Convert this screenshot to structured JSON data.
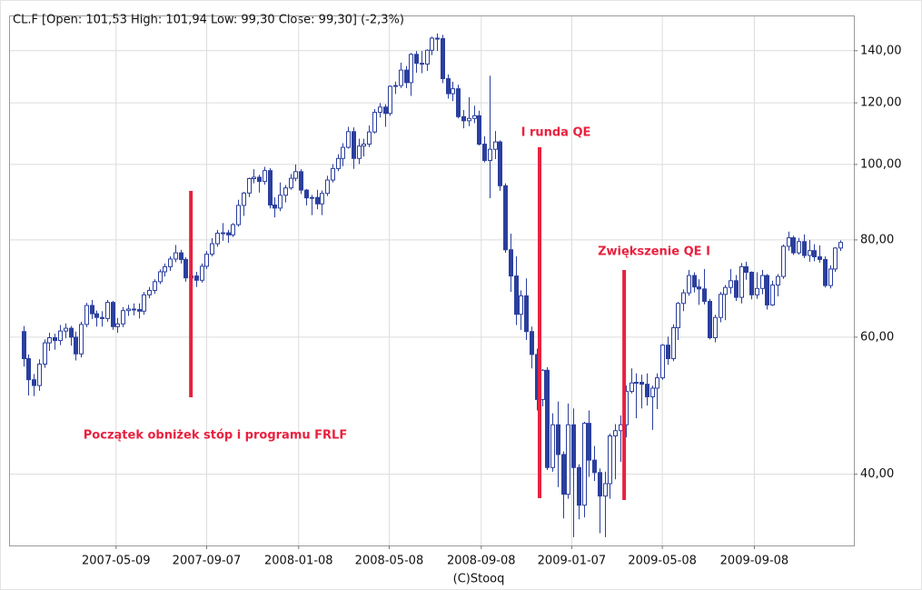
{
  "chart_data": {
    "type": "candlestick",
    "title": "CL.F [Open: 101,53  High: 101,94  Low: 99,30  Close: 99,30] (-2,3%)",
    "footer": "(C)Stooq",
    "log_scale": true,
    "grid": true,
    "up_color": "#ffffff",
    "down_color": "#2b3f9e",
    "edge_color": "#2b3f9e",
    "annotation_color": "#e8213f",
    "xlim": [
      "2006-12-17",
      "2010-01-19"
    ],
    "xticks": [
      "2007-05-09",
      "2007-09-07",
      "2008-01-08",
      "2008-05-08",
      "2008-09-08",
      "2009-01-07",
      "2009-05-08",
      "2009-09-08"
    ],
    "ylim": [
      32.4,
      155.4
    ],
    "yticks": [
      {
        "value": 40,
        "label": "40,00"
      },
      {
        "value": 60,
        "label": "60,00"
      },
      {
        "value": 80,
        "label": "80,00"
      },
      {
        "value": 100,
        "label": "100,00"
      },
      {
        "value": 120,
        "label": "120,00"
      },
      {
        "value": 140,
        "label": "140,00"
      }
    ],
    "annotations": [
      {
        "text": "Początek obniżek stóp i programu FRLF",
        "date": "2007-08-17"
      },
      {
        "text": "I runda QE",
        "date": "2008-11-25"
      },
      {
        "text": "Zwiększenie QE I",
        "date": "2009-03-18"
      }
    ],
    "x": [
      "2007-01-05",
      "2007-01-12",
      "2007-01-19",
      "2007-01-26",
      "2007-02-02",
      "2007-02-09",
      "2007-02-16",
      "2007-02-23",
      "2007-03-02",
      "2007-03-09",
      "2007-03-16",
      "2007-03-23",
      "2007-03-30",
      "2007-04-06",
      "2007-04-13",
      "2007-04-20",
      "2007-04-27",
      "2007-05-04",
      "2007-05-11",
      "2007-05-18",
      "2007-05-25",
      "2007-06-01",
      "2007-06-08",
      "2007-06-15",
      "2007-06-22",
      "2007-06-29",
      "2007-07-06",
      "2007-07-13",
      "2007-07-20",
      "2007-07-27",
      "2007-08-03",
      "2007-08-10",
      "2007-08-17",
      "2007-08-24",
      "2007-08-31",
      "2007-09-07",
      "2007-09-14",
      "2007-09-21",
      "2007-09-28",
      "2007-10-05",
      "2007-10-12",
      "2007-10-19",
      "2007-10-26",
      "2007-11-02",
      "2007-11-09",
      "2007-11-16",
      "2007-11-23",
      "2007-11-30",
      "2007-12-07",
      "2007-12-14",
      "2007-12-21",
      "2007-12-28",
      "2008-01-04",
      "2008-01-11",
      "2008-01-18",
      "2008-01-25",
      "2008-02-01",
      "2008-02-08",
      "2008-02-15",
      "2008-02-22",
      "2008-02-29",
      "2008-03-07",
      "2008-03-14",
      "2008-03-21",
      "2008-03-28",
      "2008-04-04",
      "2008-04-11",
      "2008-04-18",
      "2008-04-25",
      "2008-05-02",
      "2008-05-09",
      "2008-05-16",
      "2008-05-23",
      "2008-05-30",
      "2008-06-06",
      "2008-06-13",
      "2008-06-20",
      "2008-06-27",
      "2008-07-04",
      "2008-07-11",
      "2008-07-18",
      "2008-07-25",
      "2008-08-01",
      "2008-08-08",
      "2008-08-15",
      "2008-08-22",
      "2008-08-29",
      "2008-09-05",
      "2008-09-12",
      "2008-09-19",
      "2008-09-26",
      "2008-10-03",
      "2008-10-10",
      "2008-10-17",
      "2008-10-24",
      "2008-10-31",
      "2008-11-07",
      "2008-11-14",
      "2008-11-21",
      "2008-11-28",
      "2008-12-05",
      "2008-12-12",
      "2008-12-19",
      "2008-12-26",
      "2009-01-02",
      "2009-01-09",
      "2009-01-16",
      "2009-01-23",
      "2009-01-30",
      "2009-02-06",
      "2009-02-13",
      "2009-02-20",
      "2009-02-27",
      "2009-03-06",
      "2009-03-13",
      "2009-03-20",
      "2009-03-27",
      "2009-04-03",
      "2009-04-10",
      "2009-04-17",
      "2009-04-24",
      "2009-05-01",
      "2009-05-08",
      "2009-05-15",
      "2009-05-22",
      "2009-05-29",
      "2009-06-05",
      "2009-06-12",
      "2009-06-19",
      "2009-06-26",
      "2009-07-03",
      "2009-07-10",
      "2009-07-17",
      "2009-07-24",
      "2009-07-31",
      "2009-08-07",
      "2009-08-14",
      "2009-08-21",
      "2009-08-28",
      "2009-09-04",
      "2009-09-11",
      "2009-09-18",
      "2009-09-25",
      "2009-10-02",
      "2009-10-09",
      "2009-10-16",
      "2009-10-23",
      "2009-10-30",
      "2009-11-06",
      "2009-11-13",
      "2009-11-20",
      "2009-11-27",
      "2009-12-04",
      "2009-12-11",
      "2009-12-18",
      "2009-12-25",
      "2010-01-01"
    ],
    "open": [
      61.0,
      56.3,
      52.9,
      52.0,
      55.4,
      59.0,
      59.9,
      59.4,
      61.1,
      61.6,
      60.0,
      57.1,
      62.3,
      65.9,
      64.3,
      63.6,
      63.4,
      66.5,
      61.9,
      62.4,
      64.9,
      65.2,
      65.1,
      64.8,
      68.0,
      68.9,
      70.7,
      72.8,
      73.9,
      75.6,
      77.0,
      75.5,
      71.5,
      71.9,
      71.0,
      74.0,
      76.7,
      79.1,
      81.6,
      81.7,
      81.2,
      83.7,
      88.6,
      91.9,
      95.9,
      96.3,
      95.1,
      98.2,
      88.7,
      87.9,
      91.3,
      93.3,
      96.0,
      97.9,
      92.7,
      90.6,
      90.7,
      89.0,
      91.8,
      95.5,
      98.8,
      101.8,
      105.2,
      110.2,
      101.8,
      105.6,
      106.2,
      110.1,
      116.7,
      118.5,
      116.3,
      126.0,
      126.3,
      132.2,
      127.4,
      138.5,
      134.9,
      134.6,
      140.2,
      145.3,
      145.1,
      128.9,
      123.3,
      125.1,
      115.2,
      113.8,
      114.6,
      115.5,
      106.2,
      101.2,
      104.6,
      106.9,
      93.9,
      77.7,
      71.9,
      64.2,
      67.8,
      61.0,
      57.0,
      49.9,
      54.4,
      40.8,
      46.3,
      42.4,
      37.7,
      46.3,
      40.8,
      36.5,
      46.5,
      41.7,
      40.2,
      37.5,
      38.9,
      44.8,
      45.5,
      46.3,
      51.1,
      52.4,
      52.5,
      52.2,
      50.3,
      51.6,
      53.2,
      58.6,
      56.3,
      61.7,
      66.3,
      68.4,
      72.0,
      69.6,
      69.2,
      66.7,
      59.9,
      63.6,
      68.1,
      69.5,
      70.9,
      67.5,
      73.9,
      72.7,
      68.0,
      69.3,
      72.0,
      66.0,
      70.0,
      71.8,
      78.5,
      80.5,
      77.0,
      79.6,
      76.4,
      77.5,
      76.1,
      75.5,
      69.9,
      73.4,
      78.1
    ],
    "high": [
      62.0,
      57.0,
      53.8,
      56.2,
      59.6,
      60.8,
      60.6,
      62.2,
      62.5,
      62.0,
      61.0,
      62.8,
      66.4,
      67.0,
      64.9,
      64.8,
      67.0,
      66.8,
      63.5,
      65.6,
      66.0,
      66.3,
      66.3,
      68.6,
      69.6,
      71.2,
      73.3,
      74.6,
      76.2,
      78.8,
      77.7,
      76.0,
      72.6,
      72.8,
      74.6,
      77.4,
      80.4,
      82.4,
      84.1,
      82.4,
      84.1,
      90.1,
      92.2,
      96.2,
      98.6,
      97.0,
      99.3,
      98.9,
      90.7,
      94.8,
      94.1,
      97.2,
      100.0,
      98.6,
      93.0,
      91.4,
      92.8,
      92.6,
      96.7,
      100.1,
      103.1,
      106.5,
      111.8,
      111.6,
      107.9,
      107.9,
      112.2,
      117.8,
      119.9,
      119.5,
      126.4,
      127.8,
      135.1,
      133.8,
      139.1,
      139.9,
      139.9,
      140.6,
      146.0,
      147.3,
      146.7,
      130.5,
      127.7,
      126.6,
      117.5,
      122.0,
      119.0,
      117.3,
      108.7,
      130.0,
      110.4,
      107.4,
      94.6,
      81.5,
      76.2,
      68.9,
      71.4,
      61.9,
      58.0,
      54.6,
      54.9,
      47.9,
      49.6,
      42.8,
      49.3,
      48.6,
      41.2,
      46.7,
      48.3,
      43.5,
      40.7,
      40.3,
      45.1,
      46.4,
      47.6,
      52.0,
      54.7,
      53.9,
      53.7,
      53.9,
      52.0,
      53.9,
      58.8,
      60.1,
      62.3,
      66.6,
      69.1,
      73.2,
      72.7,
      71.2,
      73.4,
      67.2,
      64.1,
      68.6,
      70.0,
      73.4,
      72.1,
      74.7,
      75.0,
      72.9,
      72.7,
      73.2,
      72.3,
      70.9,
      72.3,
      78.9,
      82.0,
      81.0,
      80.5,
      81.3,
      80.0,
      79.0,
      78.7,
      76.2,
      74.2,
      78.3,
      79.9
    ],
    "low": [
      55.0,
      50.5,
      50.4,
      51.2,
      54.8,
      57.6,
      57.8,
      58.6,
      59.8,
      58.5,
      56.0,
      56.5,
      61.8,
      63.3,
      61.9,
      61.9,
      62.8,
      61.3,
      60.8,
      61.8,
      63.9,
      64.0,
      63.4,
      64.1,
      67.3,
      68.2,
      70.2,
      71.8,
      73.0,
      74.9,
      74.6,
      70.7,
      69.0,
      69.6,
      70.5,
      73.4,
      76.2,
      78.4,
      79.8,
      79.3,
      80.7,
      83.2,
      85.9,
      90.8,
      94.6,
      92.0,
      94.2,
      87.8,
      85.5,
      87.1,
      89.4,
      92.8,
      95.2,
      91.6,
      88.6,
      86.1,
      87.6,
      86.1,
      91.1,
      94.8,
      98.0,
      99.5,
      104.8,
      98.7,
      100.1,
      102.4,
      105.3,
      109.6,
      114.9,
      111.8,
      115.5,
      123.2,
      125.4,
      125.3,
      122.5,
      131.2,
      131.0,
      131.9,
      138.2,
      139.9,
      127.2,
      121.5,
      120.6,
      114.6,
      111.3,
      112.0,
      113.0,
      105.8,
      100.6,
      90.5,
      101.6,
      92.5,
      77.0,
      68.6,
      62.2,
      61.3,
      59.5,
      54.7,
      48.3,
      48.9,
      40.5,
      40.3,
      38.5,
      35.1,
      37.2,
      33.2,
      35.0,
      35.2,
      39.7,
      39.2,
      33.6,
      33.2,
      37.2,
      39.4,
      41.5,
      44.6,
      50.8,
      47.2,
      48.6,
      49.0,
      45.6,
      48.5,
      52.9,
      55.3,
      55.9,
      59.5,
      64.8,
      67.8,
      68.5,
      66.0,
      66.1,
      59.6,
      59.1,
      62.7,
      63.1,
      68.2,
      66.8,
      66.3,
      71.1,
      67.1,
      67.2,
      68.1,
      65.1,
      65.8,
      67.7,
      71.3,
      77.5,
      76.5,
      76.6,
      75.8,
      75.0,
      75.1,
      74.8,
      69.5,
      69.3,
      72.8,
      77.4
    ],
    "close": [
      56.3,
      52.9,
      52.0,
      55.4,
      59.0,
      59.9,
      59.4,
      61.1,
      61.6,
      60.0,
      57.1,
      62.3,
      65.9,
      64.3,
      63.6,
      63.4,
      66.5,
      61.9,
      62.4,
      64.9,
      65.2,
      65.1,
      64.8,
      68.0,
      68.9,
      70.7,
      72.8,
      73.9,
      75.6,
      77.0,
      75.5,
      71.5,
      71.9,
      71.0,
      74.0,
      76.7,
      79.1,
      81.6,
      81.7,
      81.2,
      83.7,
      88.6,
      91.9,
      95.9,
      96.3,
      95.1,
      98.2,
      88.7,
      87.9,
      91.3,
      93.3,
      96.0,
      97.9,
      92.7,
      90.6,
      90.7,
      89.0,
      91.8,
      95.5,
      98.8,
      101.8,
      105.2,
      110.2,
      101.8,
      105.6,
      106.2,
      110.1,
      116.7,
      118.5,
      116.3,
      126.0,
      126.3,
      132.2,
      127.4,
      138.5,
      134.9,
      134.6,
      140.2,
      145.3,
      145.1,
      128.9,
      123.3,
      125.1,
      115.2,
      113.8,
      114.6,
      115.5,
      106.2,
      101.2,
      104.6,
      106.9,
      93.9,
      77.7,
      71.9,
      64.2,
      67.8,
      61.0,
      57.0,
      49.9,
      54.4,
      40.8,
      46.3,
      42.4,
      37.7,
      46.3,
      40.8,
      36.5,
      46.5,
      41.7,
      40.2,
      37.5,
      38.9,
      44.8,
      45.5,
      46.3,
      51.1,
      52.4,
      52.5,
      52.2,
      50.3,
      51.6,
      53.2,
      58.6,
      56.3,
      61.7,
      66.3,
      68.4,
      72.0,
      69.6,
      69.2,
      66.7,
      59.9,
      63.6,
      68.1,
      69.5,
      70.9,
      67.5,
      73.9,
      72.7,
      68.0,
      69.3,
      72.0,
      66.0,
      70.0,
      71.8,
      78.5,
      80.5,
      77.0,
      79.6,
      76.4,
      77.5,
      76.1,
      75.5,
      69.9,
      73.4,
      78.1,
      79.4
    ]
  }
}
